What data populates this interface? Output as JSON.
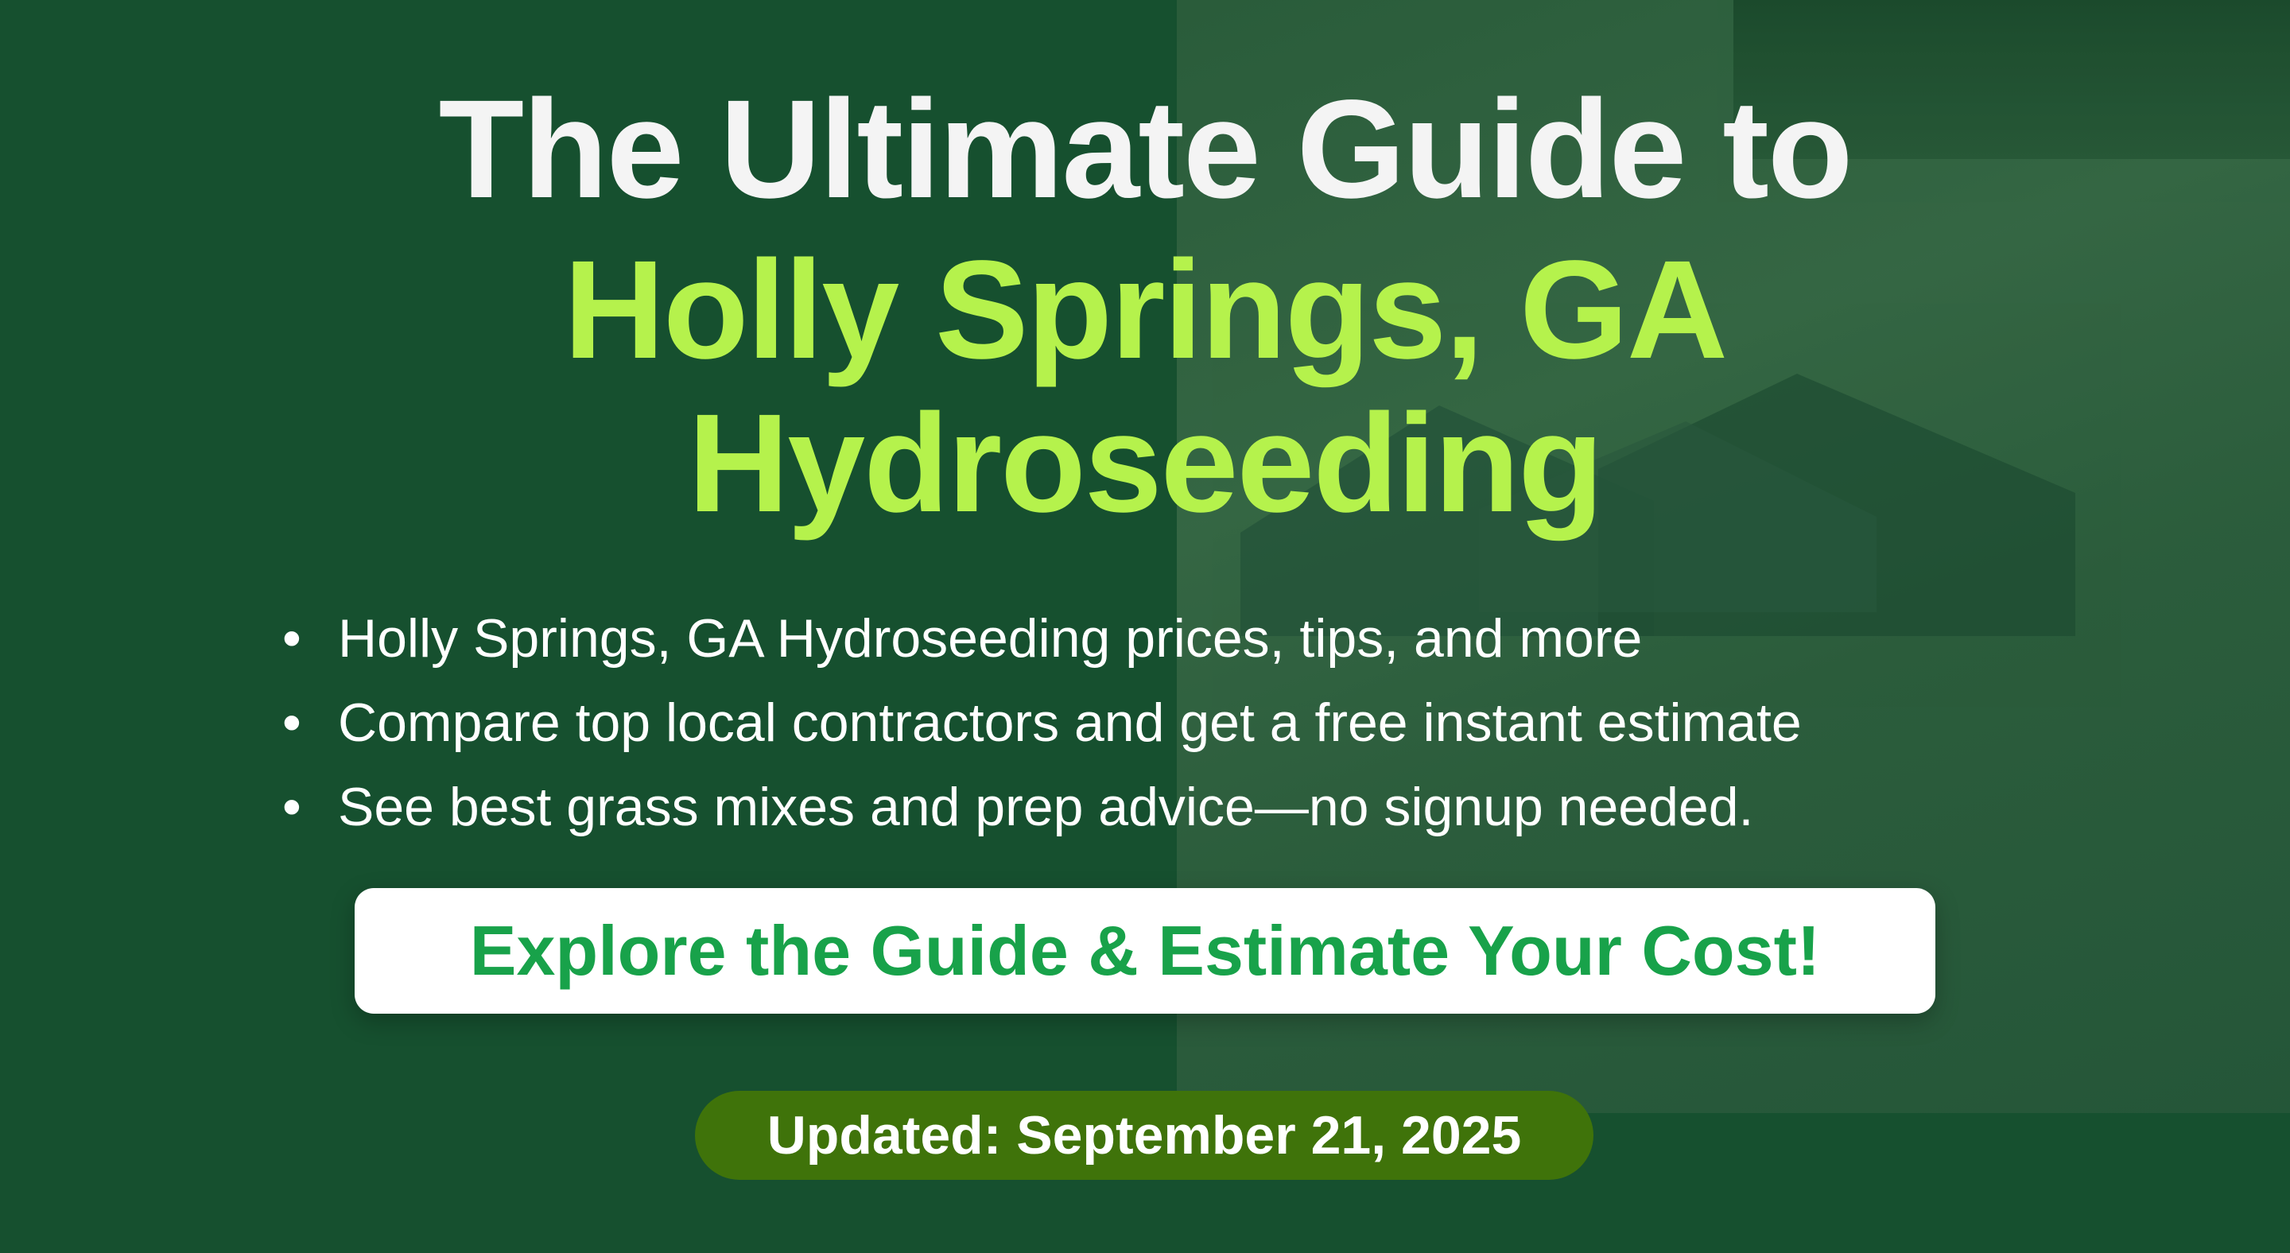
{
  "headline": {
    "line1": "The Ultimate Guide to",
    "line2": "Holly Springs, GA",
    "line3": "Hydroseeding"
  },
  "bullets": [
    "Holly Springs, GA Hydroseeding prices, tips, and more",
    "Compare top local contractors and get a free instant estimate",
    "See best grass mixes and prep advice—no signup needed."
  ],
  "cta_label": "Explore the Guide & Estimate Your Cost!",
  "updated_label": "Updated: September 21, 2025",
  "colors": {
    "background": "#16502f",
    "headline_accent": "#b5f24c",
    "cta_text": "#18a24a",
    "badge": "#3f730a"
  }
}
